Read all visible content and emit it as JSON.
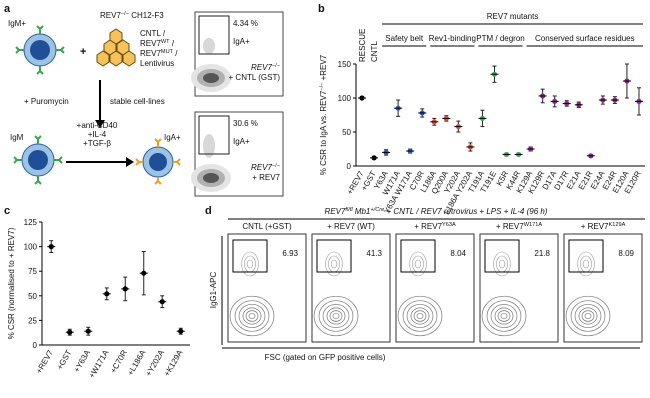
{
  "panel_labels": [
    "a",
    "b",
    "c",
    "d"
  ],
  "schematic": {
    "cell_line": {
      "text": "REV7",
      "sup": "−/−",
      "tail": " CH12-F3"
    },
    "igm_plus": "IgM+",
    "vector_lines": [
      {
        "text": "CNTL /"
      },
      {
        "text": "REV7",
        "sup": "WT",
        "tail": " /"
      },
      {
        "text": "REV7",
        "sup": "MUT",
        "tail": " /"
      },
      {
        "text": "Lentivirus"
      }
    ],
    "puromycin": "+ Puromycin",
    "stable": "stable cell-lines",
    "igm": "IgM",
    "stimulus": [
      "+anti-CD40",
      "+IL-4",
      "+TGF-β"
    ],
    "iga_plus": "IgA+",
    "facs": [
      {
        "gate": "4.34 %",
        "gate_name": "IgA+",
        "sample": [
          {
            "text": "REV7",
            "sup": "−/−"
          },
          {
            "text": "+ CNTL (GST)"
          }
        ]
      },
      {
        "gate": "30.6 %",
        "gate_name": "IgA+",
        "sample": [
          {
            "text": "REV7",
            "sup": "−/−"
          },
          {
            "text": "+ REV7"
          }
        ]
      }
    ]
  },
  "chart_data": [
    {
      "type": "dot",
      "super_group": "REV7 mutants",
      "ylabel": {
        "text": "% CSR to IgA vs. REV7",
        "sup": "−/−",
        "tail": " +REV7"
      },
      "ylim": [
        0,
        150
      ],
      "yticks": [
        0,
        50,
        100,
        150
      ],
      "groups": [
        {
          "name": "RESCUE",
          "color": "#000000",
          "categories": [
            "+REV7"
          ],
          "values": [
            100
          ],
          "errors": [
            2
          ],
          "label_colors": [
            "#000000"
          ]
        },
        {
          "name": "CNTL",
          "color": "#000000",
          "categories": [
            "+GST"
          ],
          "values": [
            12
          ],
          "errors": [
            2
          ],
          "label_colors": [
            "#000000"
          ]
        },
        {
          "name": "Safety belt",
          "color": "#2e55b8",
          "categories": [
            "Y63A",
            "W171A",
            "Y63A W171A",
            "C70R"
          ],
          "values": [
            20,
            85,
            22,
            78
          ],
          "errors": [
            4,
            12,
            3,
            6
          ],
          "label_colors": [
            "#000000",
            "#000000",
            "#d7261e",
            "#000000"
          ]
        },
        {
          "name": "Rev1-binding",
          "color": "#e0463a",
          "categories": [
            "L186A",
            "Q200A",
            "Y202A",
            "L186A Y202A"
          ],
          "values": [
            65,
            70,
            58,
            28
          ],
          "errors": [
            5,
            4,
            8,
            6
          ],
          "label_colors": [
            "#000000",
            "#000000",
            "#000000",
            "#d7261e"
          ]
        },
        {
          "name": "PTM / degron",
          "color": "#3aaa4a",
          "categories": [
            "T191A",
            "T191E",
            "K5R",
            "K44R"
          ],
          "values": [
            70,
            135,
            17,
            17
          ],
          "errors": [
            12,
            12,
            2,
            2
          ],
          "label_colors": [
            "#000000",
            "#000000",
            "#d7261e",
            "#d7261e"
          ]
        },
        {
          "name": "Conserved surface residues",
          "color": "#8a2a8a",
          "categories": [
            "K129A",
            "K129R",
            "D17A",
            "D17R",
            "E21A",
            "E21R",
            "E24A",
            "E24R",
            "E120A",
            "E120R"
          ],
          "values": [
            25,
            103,
            95,
            92,
            90,
            15,
            97,
            97,
            125,
            95
          ],
          "errors": [
            3,
            10,
            8,
            4,
            4,
            2,
            6,
            5,
            25,
            20
          ],
          "label_colors": [
            "#000000",
            "#000000",
            "#000000",
            "#000000",
            "#000000",
            "#d7261e",
            "#000000",
            "#000000",
            "#000000",
            "#000000"
          ]
        }
      ]
    },
    {
      "type": "dot",
      "ylabel": "% CSR (normalised to + REV7)",
      "categories": [
        "+REV7",
        "+GST",
        "+Y63A",
        "+W171A",
        "+C70R",
        "+L186A",
        "+Y202A",
        "+K129A"
      ],
      "values": [
        100,
        13,
        14,
        52,
        57,
        73,
        44,
        14
      ],
      "errors": [
        6,
        3,
        4,
        6,
        12,
        22,
        6,
        3
      ],
      "color": "#000000",
      "ylim": [
        0,
        125
      ],
      "yticks": [
        0,
        25,
        50,
        75,
        100,
        125
      ]
    }
  ],
  "flow": {
    "header": [
      {
        "text": "REV7",
        "sup": "fl/fl"
      },
      {
        "text": " Mb1",
        "sup": "+/Cre"
      },
      {
        "text": " + CNTL / REV7 retrovirus + LPS + IL-4 (96 h)"
      }
    ],
    "ylabel": "IgG1-APC",
    "xlabel": "FSC (gated on GFP positive cells)",
    "samples": [
      {
        "title": {
          "text": "CNTL (+GST)"
        },
        "gate": 6.93
      },
      {
        "title": {
          "text": "+ REV7 (WT)"
        },
        "gate": 41.3
      },
      {
        "title": {
          "text": "+ REV7",
          "sup": "Y63A"
        },
        "gate": 8.04
      },
      {
        "title": {
          "text": "+ REV7",
          "sup": "W171A"
        },
        "gate": 21.8
      },
      {
        "title": {
          "text": "+ REV7",
          "sup": "K129A"
        },
        "gate": 8.09
      }
    ]
  }
}
